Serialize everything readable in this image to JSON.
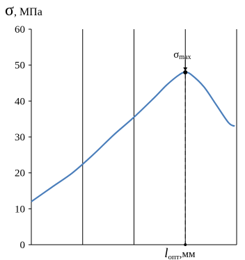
{
  "chart_data": {
    "type": "line",
    "ylabel_symbol": "σ",
    "ylabel_unit": ", МПа",
    "xlabel_symbol": "l",
    "xlabel_subscript": "опт",
    "xlabel_unit": ",мм",
    "ylim": [
      0,
      60
    ],
    "yticks": [
      "0",
      "10",
      "20",
      "30",
      "40",
      "50",
      "60"
    ],
    "grid": {
      "horizontal": false,
      "vertical": true
    },
    "series": [
      {
        "color": "#4a7ebb",
        "points": [
          [
            0.0,
            12.0
          ],
          [
            0.5,
            16.0
          ],
          [
            1.0,
            20.0
          ],
          [
            1.5,
            25.0
          ],
          [
            2.0,
            30.5
          ],
          [
            2.5,
            35.5
          ],
          [
            3.0,
            41.0
          ],
          [
            3.3,
            44.5
          ],
          [
            3.6,
            47.3
          ],
          [
            3.75,
            48.0
          ],
          [
            3.9,
            47.3
          ],
          [
            4.2,
            44.0
          ],
          [
            4.5,
            39.0
          ],
          [
            4.8,
            34.0
          ],
          [
            4.95,
            33.0
          ]
        ]
      }
    ],
    "xlim": [
      0,
      5
    ],
    "vertical_gridlines_x": [
      0,
      1.25,
      2.5,
      3.75,
      5
    ],
    "max_point": {
      "x": 3.75,
      "y": 48.0,
      "label_symbol": "σ",
      "label_subscript": "max"
    }
  }
}
